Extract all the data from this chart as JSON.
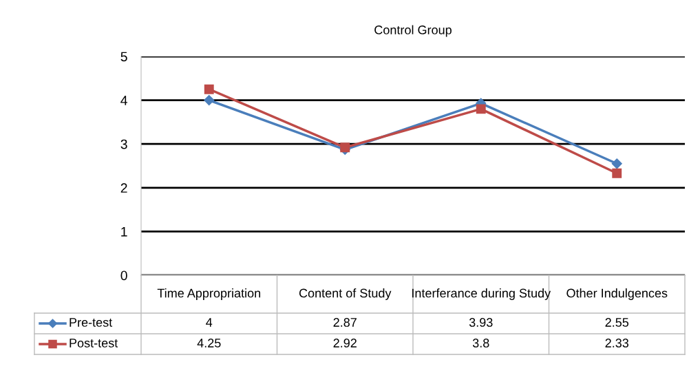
{
  "chart_data": {
    "type": "line",
    "title": "Control Group",
    "categories": [
      "Time Appropriation",
      "Content of Study",
      "Interferance during Study",
      "Other Indulgences"
    ],
    "series": [
      {
        "name": "Pre-test",
        "color": "#4a7ebb",
        "marker": "diamond",
        "values": [
          4,
          2.87,
          3.93,
          2.55
        ]
      },
      {
        "name": "Post-test",
        "color": "#be4b48",
        "marker": "square",
        "values": [
          4.25,
          2.92,
          3.8,
          2.33
        ]
      }
    ],
    "ylim": [
      0,
      5
    ],
    "yticks": [
      0,
      1,
      2,
      3,
      4,
      5
    ],
    "grid": "y",
    "legend": "bottom",
    "data_labels": true,
    "line_style": "solid"
  }
}
